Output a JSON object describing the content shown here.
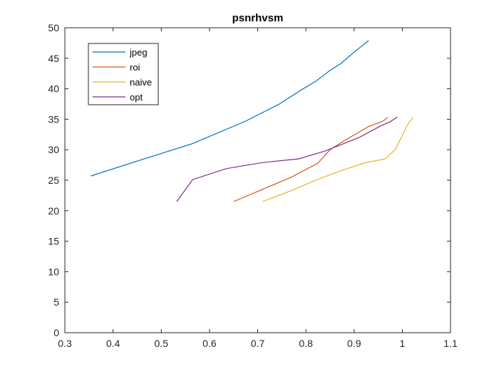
{
  "chart_data": {
    "type": "line",
    "title": "psnrhvsm",
    "xlabel": "",
    "ylabel": "",
    "xlim": [
      0.3,
      1.1
    ],
    "ylim": [
      0,
      50
    ],
    "xticks": [
      "0.3",
      "0.4",
      "0.5",
      "0.6",
      "0.7",
      "0.8",
      "0.9",
      "1",
      "1.1"
    ],
    "yticks": [
      "0",
      "5",
      "10",
      "15",
      "20",
      "25",
      "30",
      "35",
      "40",
      "45",
      "50"
    ],
    "grid": false,
    "legend_position": "top-left",
    "series": [
      {
        "name": "jpeg",
        "color": "#0072BD",
        "x": [
          0.354,
          0.46,
          0.565,
          0.675,
          0.745,
          0.79,
          0.82,
          0.85,
          0.872,
          0.9,
          0.93
        ],
        "y": [
          25.7,
          28.4,
          31.0,
          34.7,
          37.5,
          39.8,
          41.2,
          43.0,
          44.1,
          46.0,
          47.9
        ]
      },
      {
        "name": "roi",
        "color": "#D95319",
        "x": [
          0.65,
          0.71,
          0.77,
          0.825,
          0.85,
          0.88,
          0.93,
          0.96,
          0.97
        ],
        "y": [
          21.5,
          23.5,
          25.5,
          27.8,
          30.0,
          31.5,
          33.8,
          34.7,
          35.3
        ]
      },
      {
        "name": "naive",
        "color": "#EDB120",
        "x": [
          0.71,
          0.77,
          0.82,
          0.87,
          0.92,
          0.965,
          0.985,
          0.998,
          1.01,
          1.022
        ],
        "y": [
          21.5,
          23.3,
          25.0,
          26.5,
          27.8,
          28.5,
          30.0,
          32.0,
          34.0,
          35.3
        ]
      },
      {
        "name": "opt",
        "color": "#7E2F8E",
        "x": [
          0.532,
          0.565,
          0.635,
          0.71,
          0.785,
          0.84,
          0.91,
          0.955,
          0.975,
          0.99
        ],
        "y": [
          21.5,
          25.1,
          26.9,
          27.9,
          28.5,
          29.8,
          32.0,
          33.9,
          34.6,
          35.4
        ]
      }
    ]
  }
}
